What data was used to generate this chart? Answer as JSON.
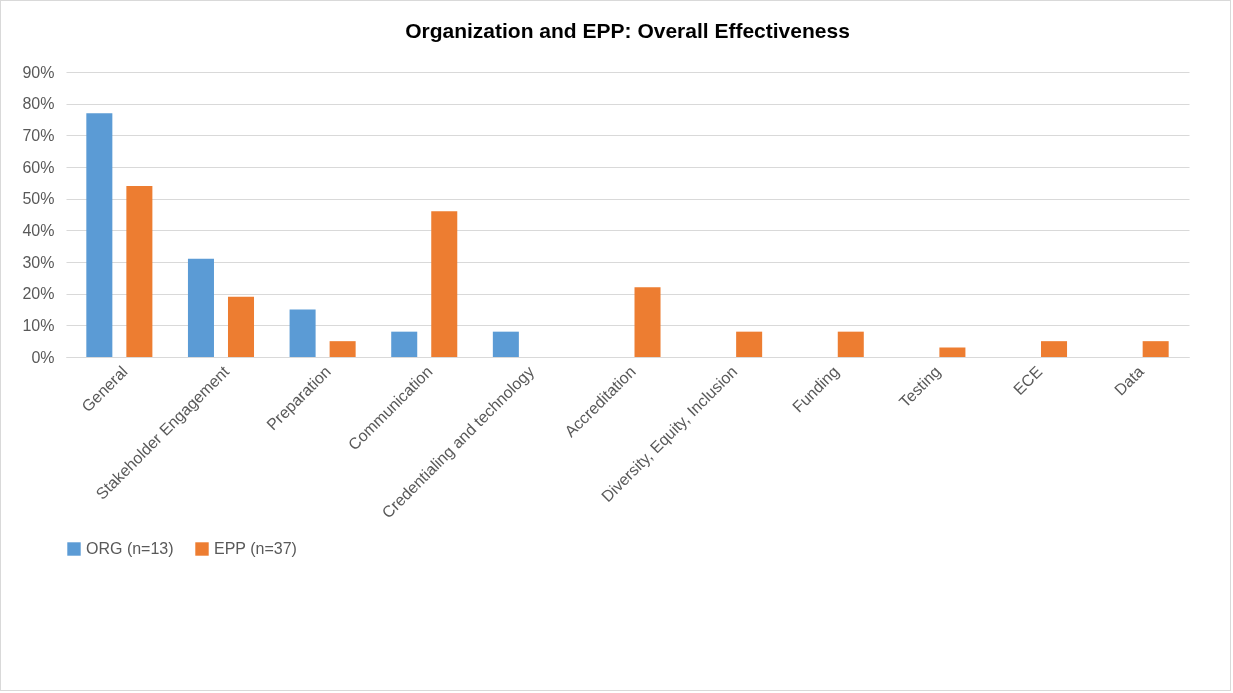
{
  "chart_data": {
    "type": "bar",
    "title": "Organization and EPP:  Overall Effectiveness",
    "categories": [
      "General",
      "Stakeholder Engagement",
      "Preparation",
      "Communication",
      "Credentialing and technology",
      "Accreditation",
      "Diversity, Equity, Inclusion",
      "Funding",
      "Testing",
      "ECE",
      "Data"
    ],
    "series": [
      {
        "name": "ORG (n=13)",
        "color": "#5b9bd5",
        "values": [
          77,
          31,
          15,
          8,
          8,
          null,
          null,
          null,
          null,
          null,
          null
        ]
      },
      {
        "name": "EPP (n=37)",
        "color": "#ed7d31",
        "values": [
          54,
          19,
          5,
          46,
          null,
          22,
          8,
          8,
          3,
          5,
          5
        ]
      }
    ],
    "ylim": [
      0,
      90
    ],
    "yticks": [
      {
        "value": 0,
        "label": "0%"
      },
      {
        "value": 10,
        "label": "10%"
      },
      {
        "value": 20,
        "label": "20%"
      },
      {
        "value": 30,
        "label": "30%"
      },
      {
        "value": 40,
        "label": "40%"
      },
      {
        "value": 50,
        "label": "50%"
      },
      {
        "value": 60,
        "label": "60%"
      },
      {
        "value": 70,
        "label": "70%"
      },
      {
        "value": 80,
        "label": "80%"
      },
      {
        "value": 90,
        "label": "90%"
      }
    ],
    "grid": "y",
    "legend": "bottom"
  }
}
